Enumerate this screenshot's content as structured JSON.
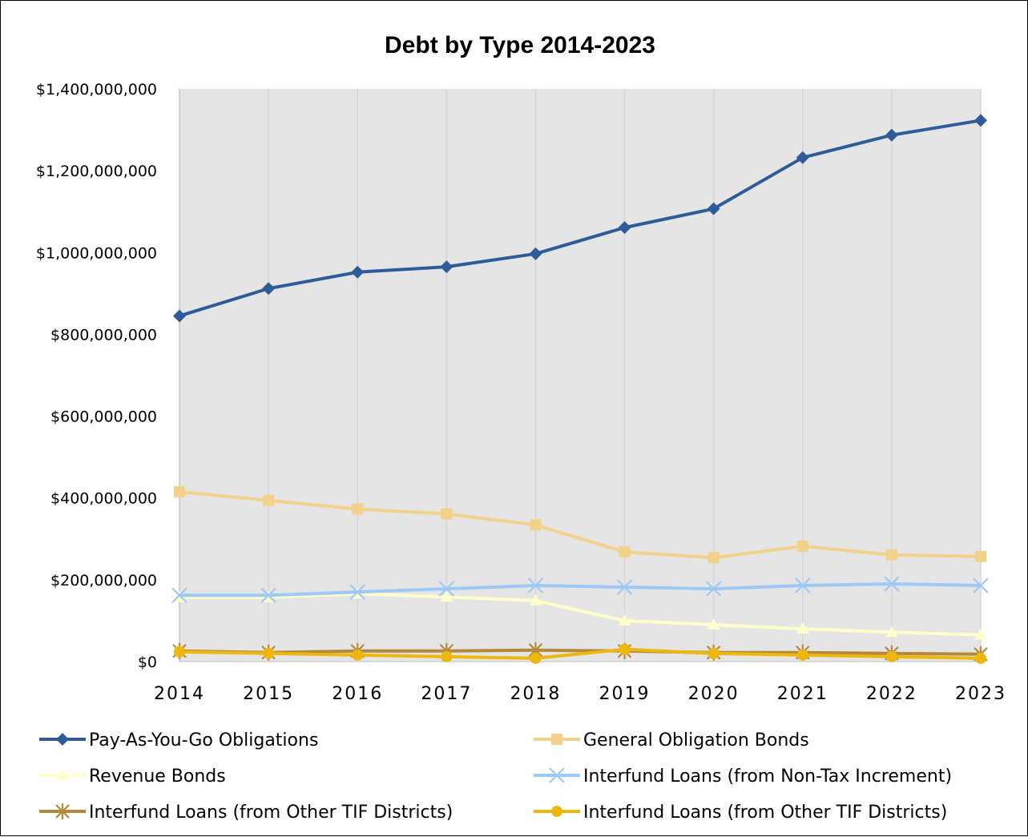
{
  "chart_data": {
    "type": "line",
    "title": "Debt by Type 2014-2023",
    "x": [
      "2014",
      "2015",
      "2016",
      "2017",
      "2018",
      "2019",
      "2020",
      "2021",
      "2022",
      "2023"
    ],
    "ylim": [
      0,
      1400000000
    ],
    "ytick_labels": [
      "$0",
      "$200,000,000",
      "$400,000,000",
      "$600,000,000",
      "$800,000,000",
      "$1,000,000,000",
      "$1,200,000,000",
      "$1,400,000,000"
    ],
    "grid": "vertical",
    "legend_position": "bottom",
    "series": [
      {
        "name": "Pay-As-You-Go Obligations",
        "color": "#2E5C99",
        "marker": "diamond",
        "values": [
          845000000,
          912000000,
          952000000,
          965000000,
          997000000,
          1061000000,
          1107000000,
          1232000000,
          1287000000,
          1323000000
        ]
      },
      {
        "name": "General Obligation Bonds",
        "color": "#F2D28A",
        "marker": "square",
        "values": [
          415000000,
          394000000,
          373000000,
          361000000,
          334000000,
          268000000,
          254000000,
          282000000,
          261000000,
          257000000
        ]
      },
      {
        "name": "Revenue Bonds",
        "color": "#FFFFCC",
        "marker": "triangle",
        "values": [
          157000000,
          157000000,
          166000000,
          158000000,
          149000000,
          100000000,
          90000000,
          80000000,
          72000000,
          65000000
        ]
      },
      {
        "name": "Interfund Loans (from Non-Tax Increment)",
        "color": "#9DC9F7",
        "marker": "x",
        "values": [
          162000000,
          162000000,
          170000000,
          178000000,
          186000000,
          182000000,
          178000000,
          186000000,
          190000000,
          186000000
        ]
      },
      {
        "name": "Interfund Loans (from Other TIF Districts)",
        "color": "#B5893C",
        "marker": "asterisk",
        "values": [
          26000000,
          22000000,
          26000000,
          26000000,
          28000000,
          26000000,
          22000000,
          22000000,
          20000000,
          18000000
        ]
      },
      {
        "name": "Interfund Loans (from Other TIF Districts)",
        "color": "#EDB70E",
        "marker": "circle",
        "values": [
          24000000,
          20000000,
          16000000,
          12000000,
          8000000,
          30000000,
          20000000,
          16000000,
          12000000,
          8000000
        ]
      }
    ]
  }
}
